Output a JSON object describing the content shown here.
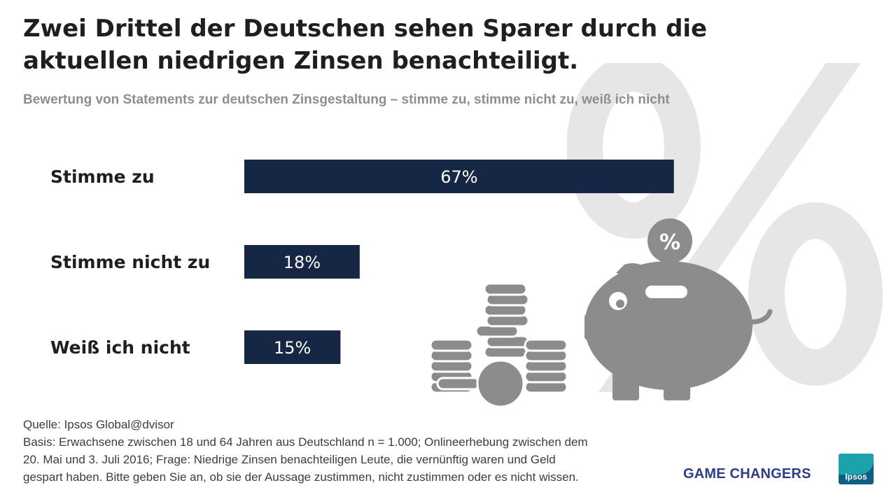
{
  "header": {
    "title": "Zwei Drittel der Deutschen sehen Sparer durch die aktuellen niedrigen Zinsen benachteiligt.",
    "subtitle": "Bewertung von Statements zur deutschen Zinsgestaltung – stimme zu, stimme nicht zu, weiß ich nicht"
  },
  "chart_data": {
    "type": "bar",
    "orientation": "horizontal",
    "categories": [
      "Stimme zu",
      "Stimme nicht zu",
      "Weiß ich nicht"
    ],
    "values": [
      67,
      18,
      15
    ],
    "value_labels": [
      "67%",
      "18%",
      "15%"
    ],
    "unit": "%",
    "xlim": [
      0,
      100
    ],
    "bar_color": "#152745",
    "grid": false
  },
  "illustration": {
    "badge_text": "%",
    "background_symbol": "%",
    "icons": [
      "coins-icon",
      "piggy-bank-icon"
    ]
  },
  "footer": {
    "source": "Quelle: Ipsos Global@dvisor",
    "basis_lines": [
      "Basis: Erwachsene zwischen 18 und 64 Jahren aus Deutschland n = 1.000; Onlineerhebung zwischen dem",
      "20. Mai und 3. Juli 2016; Frage: Niedrige Zinsen benachteiligen Leute, die vernünftig waren und Geld",
      "gespart haben. Bitte geben Sie an, ob sie der Aussage zustimmen, nicht zustimmen oder es nicht wissen."
    ]
  },
  "brand": {
    "tagline": "GAME CHANGERS",
    "logo_text": "Ipsos"
  },
  "colors": {
    "bar": "#152745",
    "illustration": "#8c8c8c",
    "background_symbol": "#e6e6e6",
    "brand_text": "#2e3c8c"
  }
}
